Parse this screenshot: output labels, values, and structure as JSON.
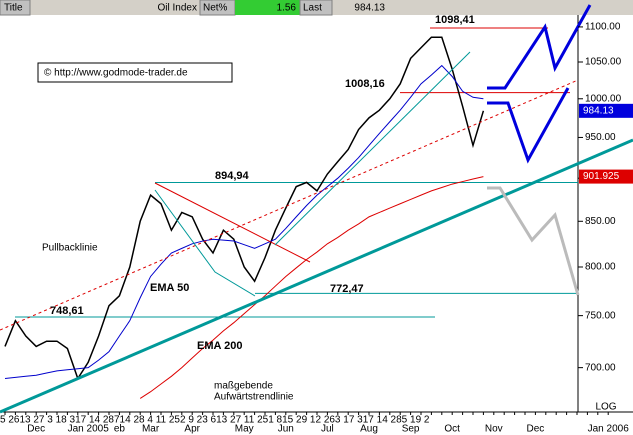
{
  "header": {
    "title": "Title",
    "name": "Oil Index",
    "net_label": "Net%",
    "net": "1.56",
    "last_label": "Last",
    "last": "984.13"
  },
  "chart_data": {
    "type": "line",
    "copyright": "© http://www.godmode-trader.de",
    "categories": [
      null,
      null,
      null,
      "Dec",
      null,
      null,
      null,
      null,
      "Jan 2005",
      null,
      null,
      "eb",
      null,
      null,
      "Mar",
      null,
      null,
      null,
      "Apr",
      null,
      null,
      null,
      null,
      "May",
      null,
      null,
      null,
      "Jun",
      null,
      null,
      null,
      "Jul",
      null,
      null,
      null,
      "Aug",
      null,
      null,
      null,
      "Sep",
      null,
      null,
      null,
      "Oct",
      null,
      null,
      null,
      "Nov",
      null,
      null,
      null,
      "Dec",
      null,
      null,
      null,
      null,
      null,
      null,
      "Jan 2006"
    ],
    "day_labels": "5  2613  27  3      18  317 14  28714 28 4 11  252 9  23   613  27  11  251  815  29 12  263  17  317 14  285  19   2",
    "series": [
      {
        "color": "#000000",
        "values": [
          720,
          745,
          730,
          720,
          725,
          725,
          718,
          690,
          705,
          730,
          760,
          770,
          800,
          850,
          880,
          870,
          840,
          860,
          855,
          830,
          815,
          840,
          830,
          800,
          785,
          810,
          840,
          865,
          890,
          895,
          885,
          905,
          920,
          935,
          960,
          975,
          985,
          1000,
          1020,
          1055,
          1070,
          1085,
          1085,
          1040,
          990,
          940,
          984.13,
          null,
          null,
          null,
          null,
          null,
          null,
          null,
          null,
          null,
          null,
          null,
          null
        ]
      },
      {
        "name": "EMA 50",
        "color": "#0000cc",
        "values": [
          690,
          691,
          692,
          693,
          695,
          697,
          698,
          699,
          700,
          707,
          715,
          730,
          745,
          768,
          790,
          803,
          815,
          820,
          825,
          828,
          830,
          829,
          828,
          824,
          820,
          825,
          830,
          842,
          855,
          868,
          880,
          890,
          900,
          912,
          925,
          940,
          955,
          970,
          985,
          1002,
          1020,
          1032,
          1045,
          1030,
          1010,
          1002,
          1000,
          null,
          null,
          null,
          null,
          null,
          null,
          null,
          null,
          null,
          null,
          null,
          null
        ]
      },
      {
        "name": "EMA 200",
        "color": "#dd0000",
        "values": [
          null,
          null,
          null,
          null,
          null,
          null,
          null,
          null,
          null,
          null,
          null,
          null,
          null,
          672,
          678,
          685,
          692,
          700,
          709,
          718,
          726,
          735,
          743,
          752,
          761,
          770,
          780,
          790,
          799,
          808,
          816,
          825,
          832,
          840,
          847,
          855,
          860,
          865,
          870,
          875,
          880,
          885,
          889,
          893,
          896,
          899,
          901.925,
          null,
          null,
          null,
          null,
          null,
          null,
          null,
          null,
          null,
          null,
          null,
          null
        ]
      }
    ],
    "levels": [
      {
        "value": 748.61,
        "label": "748,61"
      },
      {
        "value": 772.47,
        "label": "772,47"
      },
      {
        "value": 894.94,
        "label": "894,94"
      },
      {
        "value": 1008.16,
        "label": "1008,16"
      },
      {
        "value": 1098.41,
        "label": "1098,41"
      }
    ],
    "annotations": [
      "Pullbacklinie",
      "maßgebende",
      "Aufwärtstrendlinie"
    ],
    "ylim": [
      660,
      1140
    ],
    "log_scale": true,
    "scale_label": "LOG",
    "yticks": [
      {
        "value": 700,
        "label": "700.00"
      },
      {
        "value": 750,
        "label": "750.00"
      },
      {
        "value": 800,
        "label": "800.00"
      },
      {
        "value": 850,
        "label": "850.00"
      },
      {
        "value": 900,
        "label": "900.00"
      },
      {
        "value": 950,
        "label": "950.00"
      },
      {
        "value": 1000,
        "label": "1000.00"
      },
      {
        "value": 1050,
        "label": "1050.00"
      },
      {
        "value": 1100,
        "label": "1100.00"
      }
    ]
  }
}
